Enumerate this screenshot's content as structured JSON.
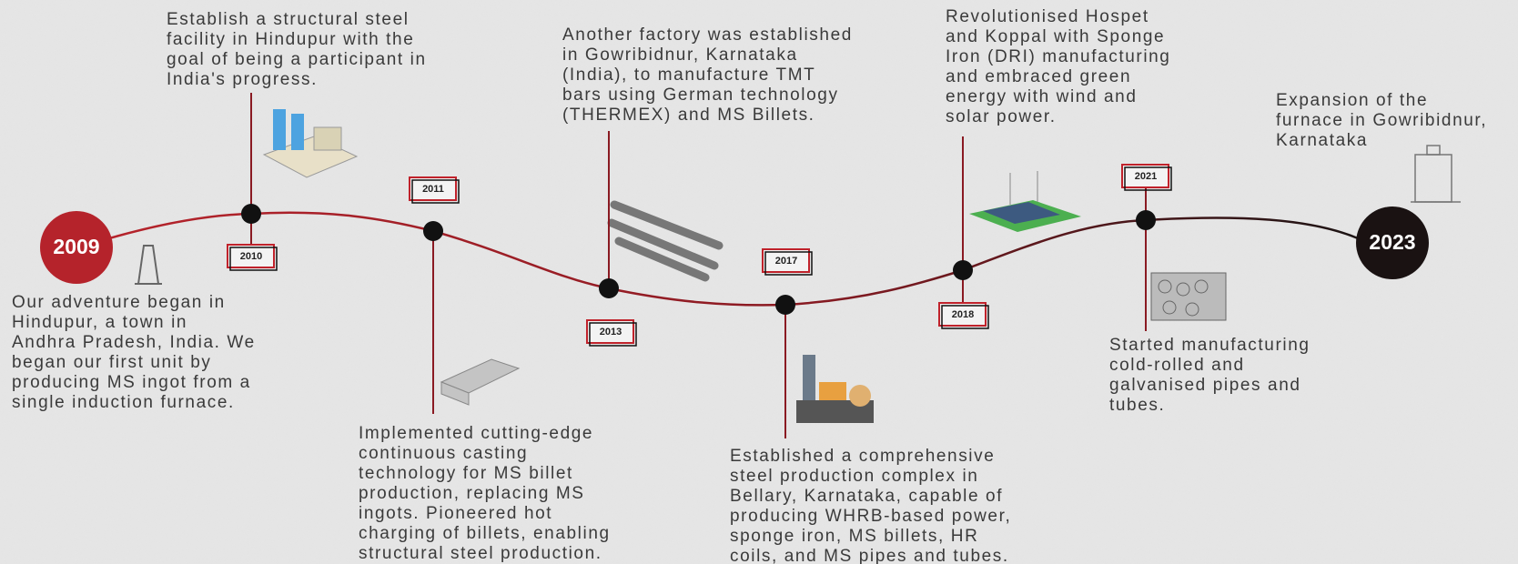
{
  "events": [
    {
      "year": "2009",
      "description": [
        "Our adventure began in",
        "Hindupur, a town in",
        "Andhra Pradesh, India. We",
        "began our first unit by",
        "producing MS ingot from a",
        "single induction furnace."
      ]
    },
    {
      "year": "2010",
      "description": [
        "Establish a structural steel",
        "facility in Hindupur with the",
        "goal of being a participant in",
        "India's progress."
      ]
    },
    {
      "year": "2011",
      "description": [
        "Implemented cutting-edge",
        "continuous casting",
        "technology for MS billet",
        "production, replacing MS",
        "ingots. Pioneered hot",
        "charging of billets, enabling",
        "structural steel production."
      ]
    },
    {
      "year": "2013",
      "description": [
        "Another factory was established",
        "in Gowribidnur, Karnataka",
        "(India), to manufacture TMT",
        "bars using German technology",
        "(THERMEX) and MS Billets."
      ]
    },
    {
      "year": "2017",
      "description": [
        "Established a comprehensive",
        "steel production complex in",
        "Bellary, Karnataka, capable of",
        "producing WHRB-based power,",
        "sponge iron, MS billets, HR",
        "coils, and MS pipes and tubes."
      ]
    },
    {
      "year": "2018",
      "description": [
        "Revolutionised Hospet",
        "and Koppal with Sponge",
        "Iron (DRI) manufacturing",
        "and embraced green",
        "energy with wind and",
        "solar power."
      ]
    },
    {
      "year": "2021",
      "description": [
        "Started manufacturing",
        "cold-rolled and",
        "galvanised pipes and",
        "tubes."
      ]
    },
    {
      "year": "2023",
      "description": [
        "Expansion of the",
        "furnace in Gowribidnur,",
        "Karnataka"
      ]
    }
  ]
}
